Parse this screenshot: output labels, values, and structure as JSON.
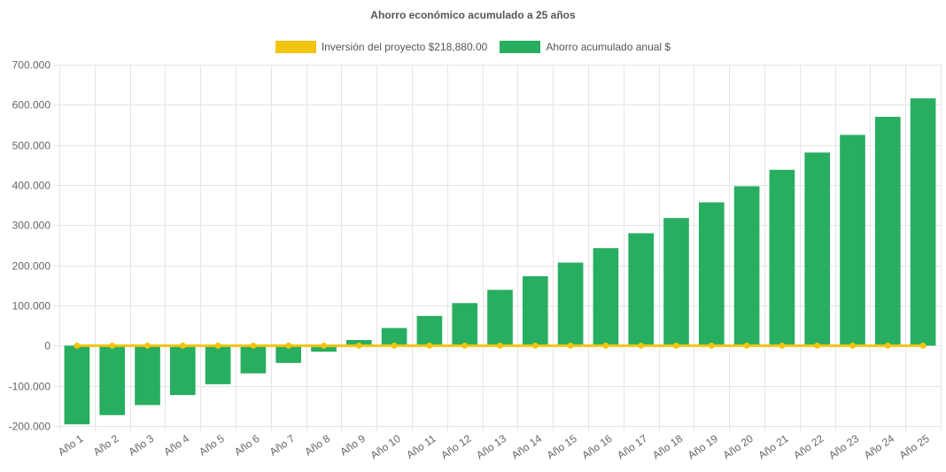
{
  "chart_data": {
    "type": "bar",
    "title": "Ahorro económico acumulado a 25 años",
    "categories": [
      "Año 1",
      "Año 2",
      "Año 3",
      "Año 4",
      "Año 5",
      "Año 6",
      "Año 7",
      "Año 8",
      "Año 9",
      "Año 10",
      "Año 11",
      "Año 12",
      "Año 13",
      "Año 14",
      "Año 15",
      "Año 16",
      "Año 17",
      "Año 18",
      "Año 19",
      "Año 20",
      "Año 21",
      "Año 22",
      "Año 23",
      "Año 24",
      "Año 25"
    ],
    "series": [
      {
        "name": "Inversión del proyecto $218,880.00",
        "kind": "line",
        "color": "#f1c40f",
        "values": [
          0,
          0,
          0,
          0,
          0,
          0,
          0,
          0,
          0,
          0,
          0,
          0,
          0,
          0,
          0,
          0,
          0,
          0,
          0,
          0,
          0,
          0,
          0,
          0,
          0
        ]
      },
      {
        "name": "Ahorro acumulado anual $",
        "kind": "bar",
        "color": "#27ae60",
        "values": [
          -196000,
          -173000,
          -148000,
          -123000,
          -96000,
          -69000,
          -43000,
          -15000,
          14000,
          44000,
          74000,
          106000,
          139000,
          173000,
          207000,
          243000,
          280000,
          318000,
          357000,
          397000,
          438000,
          481000,
          525000,
          570000,
          616000
        ]
      }
    ],
    "yticks": [
      "700.000",
      "600.000",
      "500.000",
      "400.000",
      "300.000",
      "200.000",
      "100.000",
      "0",
      "-100.000",
      "-200.000"
    ],
    "ylim": [
      -200000,
      700000
    ],
    "xlabel": "",
    "ylabel": "",
    "grid": true,
    "legend_position": "top"
  }
}
